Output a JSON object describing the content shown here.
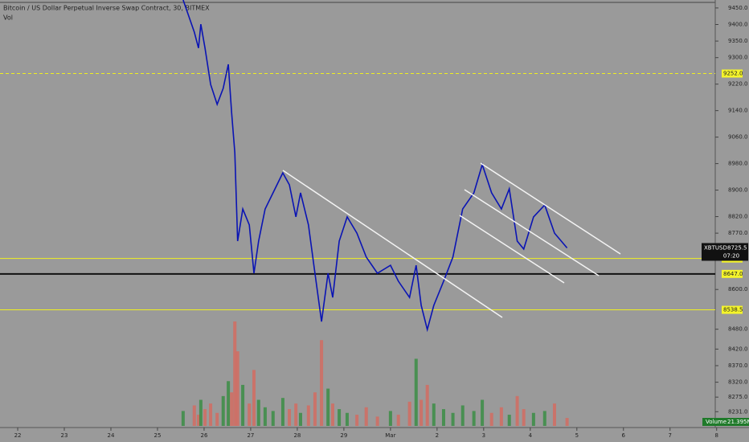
{
  "chart_data": {
    "type": "line",
    "title": "Bitcoin / US Dollar Perpetual Inverse Swap Contract, 30, BITMEX",
    "subtitle": "Vol",
    "x": [
      3.55,
      3.79,
      3.88,
      3.93,
      4.02,
      4.14,
      4.28,
      4.41,
      4.52,
      4.59,
      4.66,
      4.72,
      4.83,
      4.97,
      5.07,
      5.17,
      5.31,
      5.48,
      5.69,
      5.83,
      5.97,
      6.07,
      6.24,
      6.38,
      6.52,
      6.66,
      6.76,
      6.9,
      7.07,
      7.28,
      7.48,
      7.72,
      8.0,
      8.17,
      8.41,
      8.55,
      8.66,
      8.79,
      8.93,
      9.14,
      9.34,
      9.55,
      9.79,
      9.97,
      10.17,
      10.38,
      10.55,
      10.72,
      10.86,
      11.07,
      11.31,
      11.52,
      11.79
    ],
    "series": [
      {
        "name": "XBTUSD",
        "color": "#0a14b4",
        "values": [
          9474,
          9377,
          9329,
          9401,
          9329,
          9219,
          9159,
          9207,
          9280,
          9134,
          9013,
          8746,
          8843,
          8795,
          8649,
          8746,
          8843,
          8892,
          8952,
          8916,
          8819,
          8892,
          8795,
          8649,
          8503,
          8649,
          8576,
          8746,
          8819,
          8770,
          8698,
          8649,
          8673,
          8625,
          8576,
          8673,
          8552,
          8479,
          8552,
          8625,
          8698,
          8843,
          8892,
          8977,
          8892,
          8843,
          8904,
          8746,
          8722,
          8819,
          8855,
          8770,
          8725.5
        ]
      },
      {
        "name": "Volume",
        "color": "#2e8b3a",
        "values": [
          40,
          55,
          30,
          70,
          45,
          60,
          35,
          80,
          120,
          90,
          280,
          200,
          110,
          60,
          150,
          70,
          50,
          40,
          75,
          45,
          60,
          35,
          55,
          90,
          230,
          100,
          60,
          45,
          35,
          30,
          50,
          25,
          40,
          30,
          65,
          180,
          70,
          110,
          60,
          45,
          35,
          55,
          40,
          70,
          35,
          50,
          30,
          80,
          45,
          35,
          40,
          60,
          21.395
        ]
      }
    ],
    "current_volume": {
      "value": 21.395,
      "label": "21.395M"
    },
    "last_price": 8725.5,
    "countdown": "07:20",
    "levels": [
      {
        "value": 9252.0,
        "label": "9252.0",
        "style": "dashed"
      },
      {
        "value": 8693.5,
        "label": "8693.5",
        "style": "solid"
      },
      {
        "value": 8647.0,
        "label": "8647.0",
        "style": "bold"
      },
      {
        "value": 8538.5,
        "label": "8538.5",
        "style": "solid"
      }
    ],
    "xlim": [
      -0.38,
      14.97
    ],
    "ylim": [
      8188,
      9474
    ],
    "xticks": [
      {
        "value": 0,
        "label": "22"
      },
      {
        "value": 1,
        "label": "23"
      },
      {
        "value": 2,
        "label": "24"
      },
      {
        "value": 3,
        "label": "25"
      },
      {
        "value": 4,
        "label": "26"
      },
      {
        "value": 5,
        "label": "27"
      },
      {
        "value": 6,
        "label": "28"
      },
      {
        "value": 7,
        "label": "29"
      },
      {
        "value": 8,
        "label": "Mar"
      },
      {
        "value": 9,
        "label": "2"
      },
      {
        "value": 10,
        "label": "3"
      },
      {
        "value": 11,
        "label": "4"
      },
      {
        "value": 12,
        "label": "5"
      },
      {
        "value": 13,
        "label": "6"
      },
      {
        "value": 14,
        "label": "7"
      },
      {
        "value": 15,
        "label": "8"
      }
    ],
    "yticks": [
      {
        "value": 9450,
        "label": "9450.0"
      },
      {
        "value": 9400,
        "label": "9400.0"
      },
      {
        "value": 9350,
        "label": "9350.0"
      },
      {
        "value": 9300,
        "label": "9300.0"
      },
      {
        "value": 9220,
        "label": "9220.0"
      },
      {
        "value": 9140,
        "label": "9140.0"
      },
      {
        "value": 9060,
        "label": "9060.0"
      },
      {
        "value": 8980,
        "label": "8980.0"
      },
      {
        "value": 8900,
        "label": "8900.0"
      },
      {
        "value": 8820,
        "label": "8820.0"
      },
      {
        "value": 8770,
        "label": "8770.0"
      },
      {
        "value": 8600,
        "label": "8600.0"
      },
      {
        "value": 8480,
        "label": "8480.0"
      },
      {
        "value": 8420,
        "label": "8420.0"
      },
      {
        "value": 8370,
        "label": "8370.0"
      },
      {
        "value": 8320,
        "label": "8320.0"
      },
      {
        "value": 8275,
        "label": "8275.0"
      },
      {
        "value": 8231,
        "label": "8231.0"
      }
    ]
  }
}
